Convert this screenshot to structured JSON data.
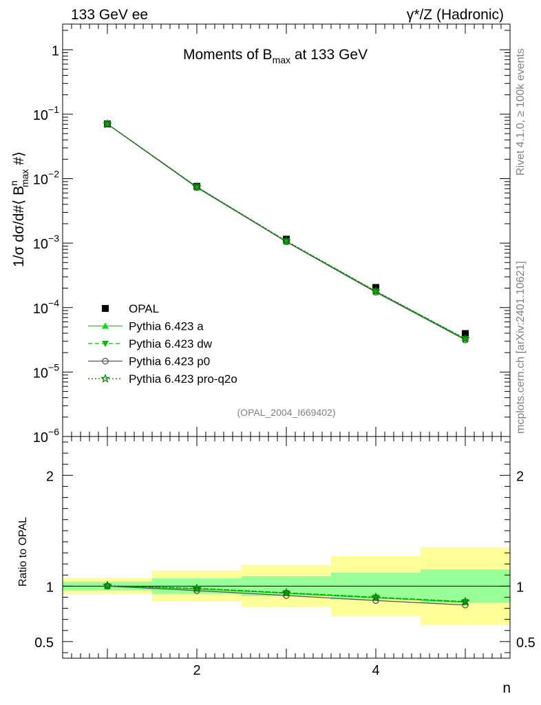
{
  "header": {
    "left": "133 GeV ee",
    "right": "γ*/Z (Hadronic)"
  },
  "side_labels": {
    "rivet": "Rivet 4.1.0, ≥ 100k events",
    "mcplots": "mcplots.cern.ch [arXiv:2401.10621]"
  },
  "chart_data": [
    {
      "type": "scatter",
      "panel": "main",
      "title_prefix": "Moments of B",
      "title_sub": "max",
      "title_suffix": " at 133 GeV",
      "ylabel_prefix": "1/σ  dσ/d#⟨ B",
      "ylabel_sup": "n",
      "ylabel_sub": "max",
      "ylabel_suffix": " #⟩",
      "yscale": "log",
      "ylim": [
        1e-06,
        2.5
      ],
      "xlim": [
        0.5,
        5.5
      ],
      "ytick_labels": [
        {
          "value": 1,
          "base": "1",
          "exp": ""
        },
        {
          "value": 0.1,
          "base": "10",
          "exp": "−1"
        },
        {
          "value": 0.01,
          "base": "10",
          "exp": "−2"
        },
        {
          "value": 0.001,
          "base": "10",
          "exp": "−3"
        },
        {
          "value": 0.0001,
          "base": "10",
          "exp": "−4"
        },
        {
          "value": 1e-05,
          "base": "10",
          "exp": "−5"
        },
        {
          "value": 1e-06,
          "base": "10",
          "exp": "−6"
        }
      ],
      "x": [
        1,
        2,
        3,
        4,
        5
      ],
      "watermark": "(OPAL_2004_I669402)",
      "legend_position": "bottom-left",
      "series": [
        {
          "name": "OPAL",
          "marker": "square",
          "color": "#000000",
          "values": [
            0.0705,
            0.0076,
            0.00115,
            0.000205,
            3.95e-05
          ]
        },
        {
          "name": "Pythia 6.423 a",
          "marker": "triangle-up",
          "line": "solid",
          "color": "#00dd00",
          "values": [
            0.0705,
            0.00745,
            0.00106,
            0.000178,
            3.25e-05
          ]
        },
        {
          "name": "Pythia 6.423 dw",
          "marker": "triangle-down",
          "line": "dashed",
          "color": "#00bb00",
          "values": [
            0.0706,
            0.00745,
            0.00107,
            0.000179,
            3.27e-05
          ]
        },
        {
          "name": "Pythia 6.423 p0",
          "marker": "circle-open",
          "line": "solid",
          "color": "#555555",
          "values": [
            0.0705,
            0.0073,
            0.00105,
            0.000173,
            3.15e-05
          ]
        },
        {
          "name": "Pythia 6.423 pro-q2o",
          "marker": "star-open",
          "line": "dotted",
          "color": "#007700",
          "values": [
            0.0706,
            0.00745,
            0.00108,
            0.00018,
            3.28e-05
          ]
        }
      ]
    },
    {
      "type": "line",
      "panel": "ratio",
      "ylabel": "Ratio to OPAL",
      "xlabel": "n",
      "ylim": [
        0.35,
        2.35
      ],
      "xlim": [
        0.5,
        5.5
      ],
      "xtick_labels": [
        "2",
        "4"
      ],
      "ytick_labels": [
        "0.5",
        "1",
        "2"
      ],
      "bands": [
        {
          "x0": 0.5,
          "x1": 1.5,
          "yellow": [
            0.93,
            1.07
          ],
          "green": [
            0.96,
            1.04
          ]
        },
        {
          "x0": 1.5,
          "x1": 2.5,
          "yellow": [
            0.86,
            1.14
          ],
          "green": [
            0.93,
            1.07
          ]
        },
        {
          "x0": 2.5,
          "x1": 3.5,
          "yellow": [
            0.81,
            1.19
          ],
          "green": [
            0.91,
            1.09
          ]
        },
        {
          "x0": 3.5,
          "x1": 4.5,
          "yellow": [
            0.73,
            1.27
          ],
          "green": [
            0.88,
            1.12
          ]
        },
        {
          "x0": 4.5,
          "x1": 5.5,
          "yellow": [
            0.65,
            1.35
          ],
          "green": [
            0.85,
            1.15
          ]
        }
      ],
      "series": [
        {
          "name": "Pythia 6.423 a",
          "marker": "triangle-up",
          "line": "solid",
          "color": "#00dd00",
          "values": [
            1.0,
            0.975,
            0.935,
            0.895,
            0.855
          ]
        },
        {
          "name": "Pythia 6.423 dw",
          "marker": "triangle-down",
          "line": "dashed",
          "color": "#00bb00",
          "values": [
            1.0,
            0.98,
            0.94,
            0.9,
            0.86
          ]
        },
        {
          "name": "Pythia 6.423 p0",
          "marker": "circle-open",
          "line": "solid",
          "color": "#555555",
          "values": [
            1.0,
            0.96,
            0.915,
            0.87,
            0.83
          ]
        },
        {
          "name": "Pythia 6.423 pro-q2o",
          "marker": "star-open",
          "line": "dotted",
          "color": "#007700",
          "values": [
            1.005,
            0.98,
            0.94,
            0.9,
            0.86
          ]
        }
      ]
    }
  ]
}
